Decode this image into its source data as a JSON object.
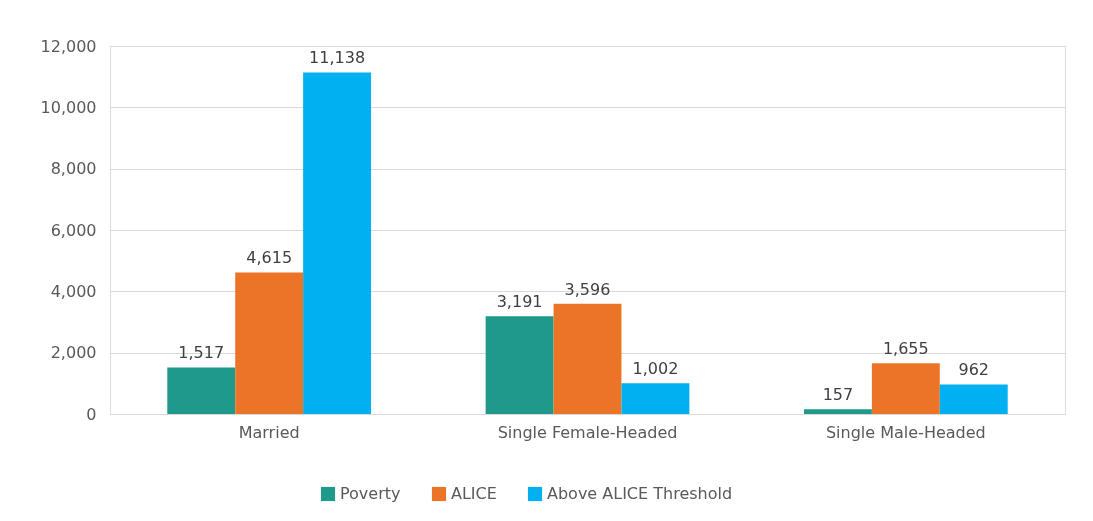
{
  "chart_data": {
    "type": "bar",
    "categories": [
      "Married",
      "Single Female-Headed",
      "Single Male-Headed"
    ],
    "series": [
      {
        "name": "Poverty",
        "color": "#1f9a8a",
        "values": [
          1517,
          3191,
          157
        ],
        "value_labels": [
          "1,517",
          "3,191",
          "157"
        ]
      },
      {
        "name": "ALICE",
        "color": "#ec7426",
        "values": [
          4615,
          3596,
          1655
        ],
        "value_labels": [
          "4,615",
          "3,596",
          "1,655"
        ]
      },
      {
        "name": "Above ALICE Threshold",
        "color": "#00b0f0",
        "values": [
          11138,
          1002,
          962
        ],
        "value_labels": [
          "11,138",
          "1,002",
          "962"
        ]
      }
    ],
    "ylim": [
      0,
      12000
    ],
    "yticks": [
      {
        "value": 0,
        "label": "0"
      },
      {
        "value": 2000,
        "label": "2,000"
      },
      {
        "value": 4000,
        "label": "4,000"
      },
      {
        "value": 6000,
        "label": "6,000"
      },
      {
        "value": 8000,
        "label": "8,000"
      },
      {
        "value": 10000,
        "label": "10,000"
      },
      {
        "value": 12000,
        "label": "12,000"
      }
    ],
    "grid": "y",
    "legend": "bottom"
  }
}
